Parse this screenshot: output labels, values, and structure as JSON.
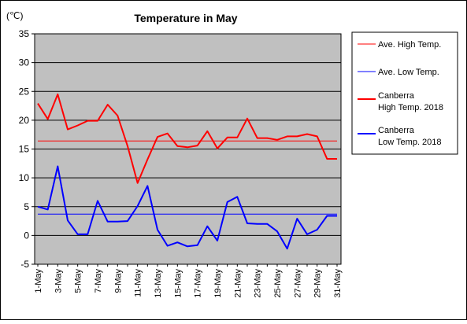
{
  "chart_data": {
    "type": "line",
    "title": "Temperature in May",
    "unit_label": "(℃)",
    "ylim": [
      -5,
      35
    ],
    "y_ticks": [
      -5,
      0,
      5,
      10,
      15,
      20,
      25,
      30,
      35
    ],
    "grid": "horizontal",
    "plot_background": "#c0c0c0",
    "legend_position": "right",
    "x": [
      "1-May",
      "2-May",
      "3-May",
      "4-May",
      "5-May",
      "6-May",
      "7-May",
      "8-May",
      "9-May",
      "10-May",
      "11-May",
      "12-May",
      "13-May",
      "14-May",
      "15-May",
      "16-May",
      "17-May",
      "18-May",
      "19-May",
      "20-May",
      "21-May",
      "22-May",
      "23-May",
      "24-May",
      "25-May",
      "26-May",
      "27-May",
      "28-May",
      "29-May",
      "30-May",
      "31-May"
    ],
    "x_tick_labels": [
      "1-May",
      "3-May",
      "5-May",
      "7-May",
      "9-May",
      "11-May",
      "13-May",
      "15-May",
      "17-May",
      "19-May",
      "21-May",
      "23-May",
      "25-May",
      "27-May",
      "29-May",
      "31-May"
    ],
    "series": [
      {
        "name": "Ave. High Temp.",
        "color": "#ff0000",
        "style": "thin",
        "values": [
          16.4,
          16.4,
          16.4,
          16.4,
          16.4,
          16.4,
          16.4,
          16.4,
          16.4,
          16.4,
          16.4,
          16.4,
          16.4,
          16.4,
          16.4,
          16.4,
          16.4,
          16.4,
          16.4,
          16.4,
          16.4,
          16.4,
          16.4,
          16.4,
          16.4,
          16.4,
          16.4,
          16.4,
          16.4,
          16.4,
          16.4
        ]
      },
      {
        "name": "Ave. Low Temp.",
        "color": "#0000ff",
        "style": "thin",
        "values": [
          3.7,
          3.7,
          3.7,
          3.7,
          3.7,
          3.7,
          3.7,
          3.7,
          3.7,
          3.7,
          3.7,
          3.7,
          3.7,
          3.7,
          3.7,
          3.7,
          3.7,
          3.7,
          3.7,
          3.7,
          3.7,
          3.7,
          3.7,
          3.7,
          3.7,
          3.7,
          3.7,
          3.7,
          3.7,
          3.7,
          3.7
        ]
      },
      {
        "name": "Canberra\nHigh Temp. 2018",
        "color": "#ff0000",
        "style": "thick",
        "values": [
          22.9,
          20.2,
          24.5,
          18.4,
          19.1,
          19.9,
          19.9,
          22.7,
          20.8,
          15.5,
          9.1,
          13.2,
          17.1,
          17.7,
          15.5,
          15.3,
          15.6,
          18.1,
          15.1,
          17.0,
          17.0,
          20.3,
          16.9,
          16.9,
          16.6,
          17.2,
          17.2,
          17.6,
          17.2,
          13.3,
          13.3
        ]
      },
      {
        "name": "Canberra\nLow Temp. 2018",
        "color": "#0000ff",
        "style": "thick",
        "values": [
          5.0,
          4.5,
          12.0,
          2.6,
          0.2,
          0.2,
          6.0,
          2.4,
          2.4,
          2.5,
          5.1,
          8.6,
          1.0,
          -1.8,
          -1.2,
          -1.9,
          -1.7,
          1.6,
          -0.9,
          5.8,
          6.7,
          2.1,
          2.0,
          2.0,
          0.7,
          -2.3,
          2.9,
          0.2,
          1.0,
          3.4,
          3.4
        ]
      }
    ]
  }
}
